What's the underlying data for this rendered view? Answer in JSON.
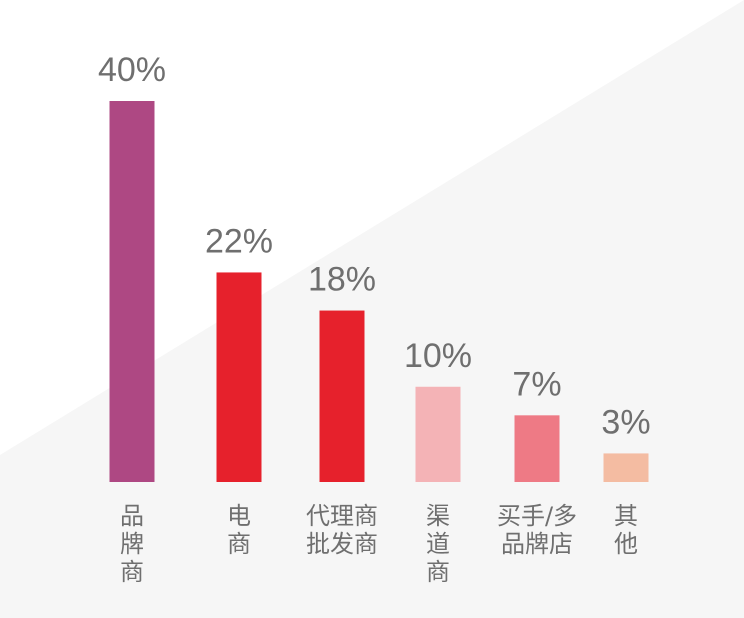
{
  "chart_data": {
    "type": "bar",
    "categories": [
      "品牌商",
      "电商",
      "代理商批发商",
      "渠道商",
      "买手/多品牌店",
      "其他"
    ],
    "category_lines": [
      [
        "品",
        "牌",
        "商"
      ],
      [
        "电",
        "商"
      ],
      [
        "代理商",
        "批发商"
      ],
      [
        "渠",
        "道",
        "商"
      ],
      [
        "买手/多",
        "品牌店"
      ],
      [
        "其",
        "他"
      ]
    ],
    "values": [
      40,
      22,
      18,
      10,
      7,
      3
    ],
    "value_labels": [
      "40%",
      "22%",
      "18%",
      "10%",
      "7%",
      "3%"
    ],
    "colors": [
      "#ae4883",
      "#e6212c",
      "#e6212c",
      "#f4b3b6",
      "#ee7a85",
      "#f4bca2"
    ],
    "background_colors": [
      "#ffffff",
      "#f6f6f6"
    ],
    "ylim": [
      0,
      40
    ],
    "grid": false,
    "legend": "none"
  }
}
